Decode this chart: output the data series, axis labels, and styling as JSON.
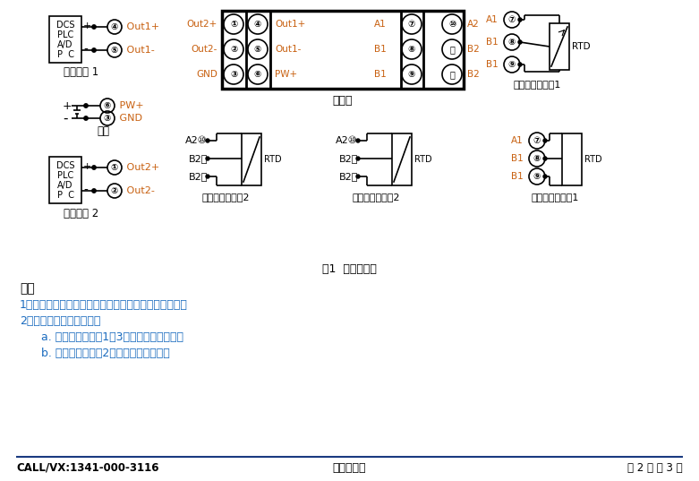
{
  "bg_color": "#ffffff",
  "text_color_black": "#000000",
  "text_color_blue": "#1a4fa0",
  "text_color_orange": "#c86010",
  "text_color_note": "#1a6bbf",
  "fig_caption": "图1  模块接线图",
  "note_title": "注：",
  "note_line1": "1、两线，三线或四线热电阻输入时，分别参看接线图。",
  "note_line2": "2、三线热电阻断线检测：",
  "note_line3": "      a. 输出最大值：与1或3脚相连的导线断线；",
  "note_line4": "      b. 输出最小值：与2脚相连的导线断线。",
  "footer_left": "CALL/VX:1341-000-3116",
  "footer_center": "深圳晨安瑞",
  "footer_right": "第 2 页 共 3 页",
  "label_sig1": "信号输出 1",
  "label_power": "电源",
  "label_sig2": "信号输出 2",
  "label_topview": "顶视图",
  "label_3wire1": "三线热电阻输入1",
  "label_2wire2": "两线热电阻输入2",
  "label_3wire2": "三线热电阻输入2",
  "label_2wire1": "两线热电阻输入1"
}
